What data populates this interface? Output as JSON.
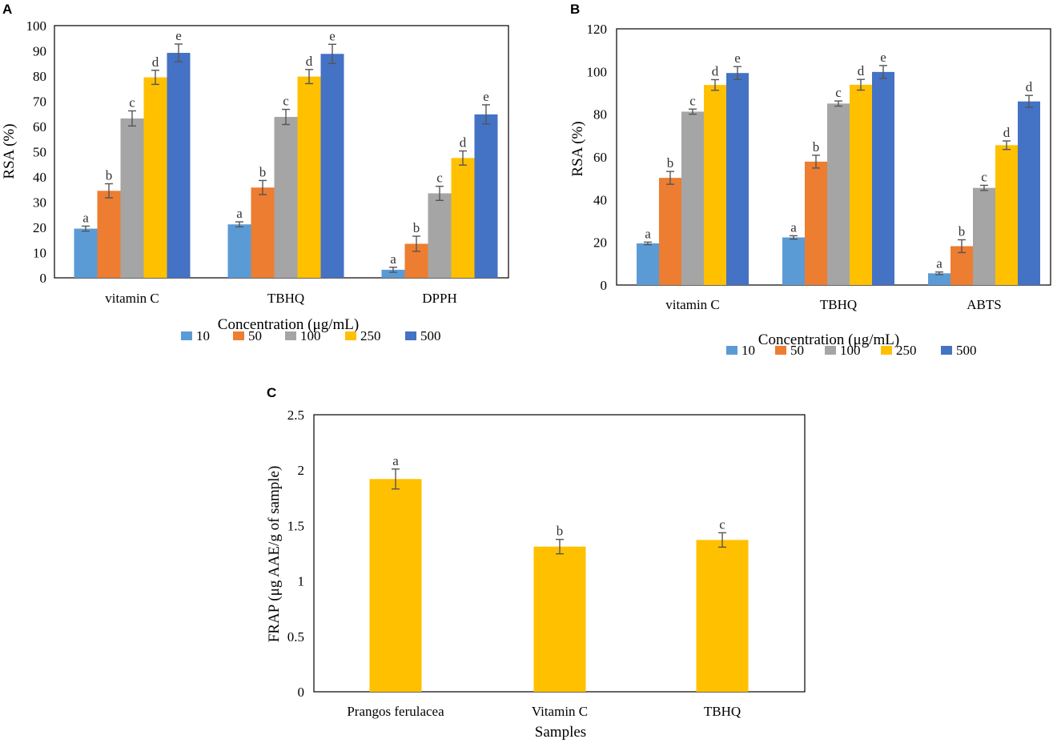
{
  "chart_data": [
    {
      "panel": "A",
      "type": "bar",
      "categories": [
        "vitamin C",
        "TBHQ",
        "DPPH"
      ],
      "series": [
        {
          "name": "10",
          "color": "#5B9BD5",
          "values": [
            19.5,
            21.2,
            3.2
          ],
          "errors": [
            1.0,
            1.0,
            1.0
          ],
          "labels": [
            "a",
            "a",
            "a"
          ]
        },
        {
          "name": "50",
          "color": "#ED7D31",
          "values": [
            34.5,
            35.8,
            13.5
          ],
          "errors": [
            2.8,
            2.8,
            3.0
          ],
          "labels": [
            "b",
            "b",
            "b"
          ]
        },
        {
          "name": "100",
          "color": "#A5A5A5",
          "values": [
            63.2,
            63.8,
            33.5
          ],
          "errors": [
            3.0,
            3.0,
            2.8
          ],
          "labels": [
            "c",
            "c",
            "c"
          ]
        },
        {
          "name": "250",
          "color": "#FFC000",
          "values": [
            79.5,
            79.8,
            47.5
          ],
          "errors": [
            2.8,
            2.8,
            2.8
          ],
          "labels": [
            "d",
            "d",
            "d"
          ]
        },
        {
          "name": "500",
          "color": "#4472C4",
          "values": [
            89.2,
            88.8,
            64.8
          ],
          "errors": [
            3.5,
            3.8,
            3.8
          ],
          "labels": [
            "e",
            "e",
            "e"
          ]
        }
      ],
      "ylabel": "RSA (%)",
      "xlabel": "Concentration (μg/mL)",
      "ylim": [
        0,
        100
      ],
      "yticks": [
        "0",
        "10",
        "20",
        "30",
        "40",
        "50",
        "60",
        "70",
        "80",
        "90",
        "100"
      ],
      "legend": "bottom"
    },
    {
      "panel": "B",
      "type": "bar",
      "categories": [
        "vitamin C",
        "TBHQ",
        "ABTS"
      ],
      "series": [
        {
          "name": "10",
          "color": "#5B9BD5",
          "values": [
            19.5,
            22.3,
            5.5
          ],
          "errors": [
            0.6,
            0.8,
            0.6
          ],
          "labels": [
            "a",
            "a",
            "a"
          ]
        },
        {
          "name": "50",
          "color": "#ED7D31",
          "values": [
            50.2,
            57.8,
            18.2
          ],
          "errors": [
            3.0,
            3.0,
            3.0
          ],
          "labels": [
            "b",
            "b",
            "b"
          ]
        },
        {
          "name": "100",
          "color": "#A5A5A5",
          "values": [
            81.2,
            85.0,
            45.5
          ],
          "errors": [
            1.2,
            1.2,
            1.2
          ],
          "labels": [
            "c",
            "c",
            "c"
          ]
        },
        {
          "name": "250",
          "color": "#FFC000",
          "values": [
            93.7,
            93.8,
            65.5
          ],
          "errors": [
            2.5,
            2.5,
            2.0
          ],
          "labels": [
            "d",
            "d",
            "d"
          ]
        },
        {
          "name": "500",
          "color": "#4472C4",
          "values": [
            99.3,
            99.8,
            86.0
          ],
          "errors": [
            3.0,
            3.0,
            2.8
          ],
          "labels": [
            "e",
            "e",
            "d"
          ]
        }
      ],
      "ylabel": "RSA (%)",
      "xlabel": "Concentration (μg/mL)",
      "ylim": [
        0,
        120
      ],
      "yticks": [
        "0",
        "20",
        "40",
        "60",
        "80",
        "100",
        "120"
      ],
      "legend": "bottom"
    },
    {
      "panel": "C",
      "type": "bar",
      "categories": [
        "Prangos ferulacea",
        "Vitamin C",
        "TBHQ"
      ],
      "series": [
        {
          "name": "FRAP",
          "color": "#FFC000",
          "values": [
            1.92,
            1.31,
            1.37
          ],
          "errors": [
            0.09,
            0.065,
            0.065
          ],
          "labels": [
            "a",
            "b",
            "c"
          ]
        }
      ],
      "ylabel": "FRAP (μg AAE/g of  sample)",
      "xlabel": "Samples",
      "ylim": [
        0,
        2.5
      ],
      "yticks": [
        "0",
        "0.5",
        "1",
        "1.5",
        "2",
        "2.5"
      ],
      "legend": "none"
    }
  ]
}
